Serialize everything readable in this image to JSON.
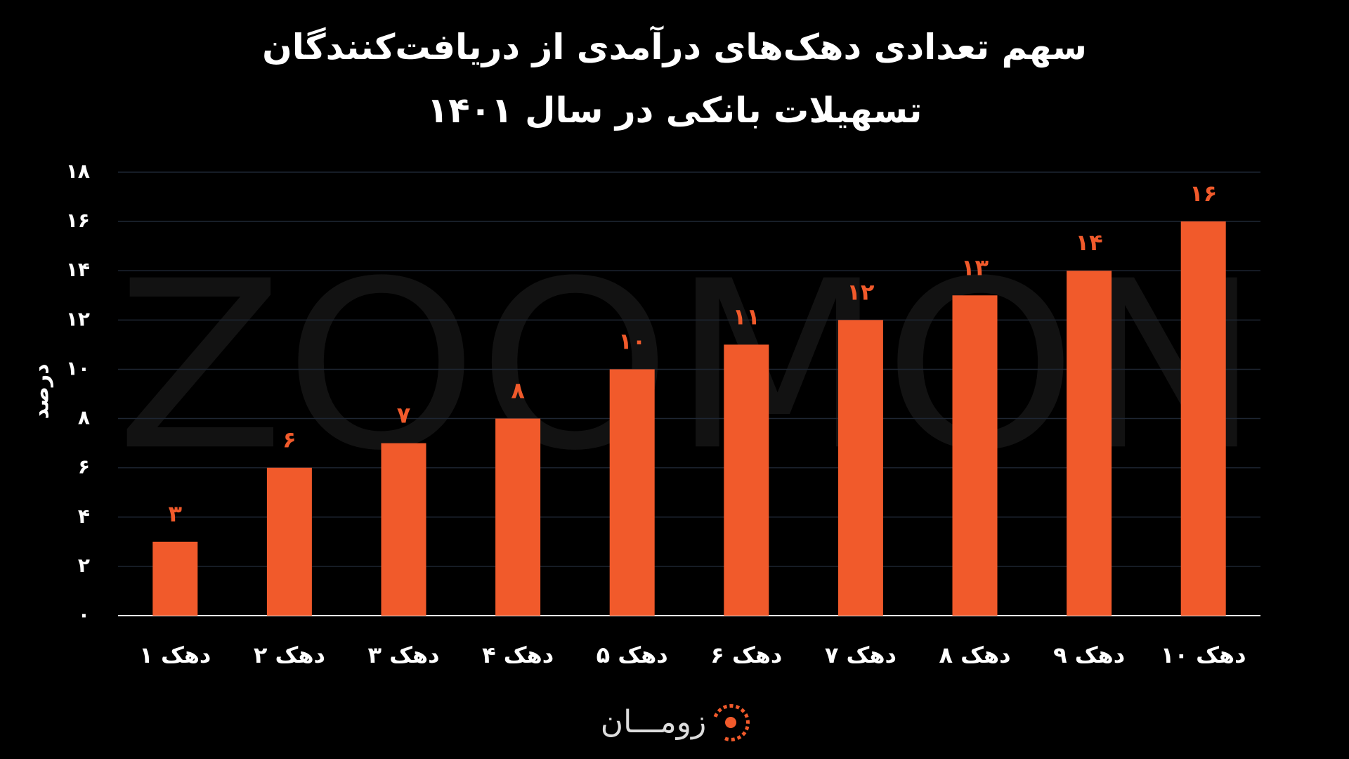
{
  "chart_data": {
    "type": "bar",
    "title": "سهم تعدادی دهک‌های درآمدی از دریافت‌کنندگان تسهیلات بانکی در سال ۱۴۰۱",
    "y_label": "درصد",
    "watermark": "ZOOMON",
    "logo": "زومـــان",
    "categories": [
      "دهک ۱",
      "دهک ۲",
      "دهک ۳",
      "دهک ۴",
      "دهک ۵",
      "دهک ۶",
      "دهک ۷",
      "دهک ۸",
      "دهک ۹",
      "دهک ۱۰"
    ],
    "values": [
      3,
      6,
      7,
      8,
      10,
      11,
      12,
      13,
      14,
      16
    ],
    "value_labels": [
      "۳",
      "۶",
      "۷",
      "۸",
      "۱۰",
      "۱۱",
      "۱۲",
      "۱۳",
      "۱۴",
      "۱۶"
    ],
    "color": "#f15a2b",
    "ylim": [
      0,
      18
    ],
    "yticks": [
      {
        "value": 0,
        "label": "۰"
      },
      {
        "value": 2,
        "label": "۲"
      },
      {
        "value": 4,
        "label": "۴"
      },
      {
        "value": 6,
        "label": "۶"
      },
      {
        "value": 8,
        "label": "۸"
      },
      {
        "value": 10,
        "label": "۱۰"
      },
      {
        "value": 12,
        "label": "۱۲"
      },
      {
        "value": 14,
        "label": "۱۴"
      },
      {
        "value": 16,
        "label": "۱۶"
      },
      {
        "value": 18,
        "label": "۱۸"
      }
    ],
    "grid": true
  }
}
